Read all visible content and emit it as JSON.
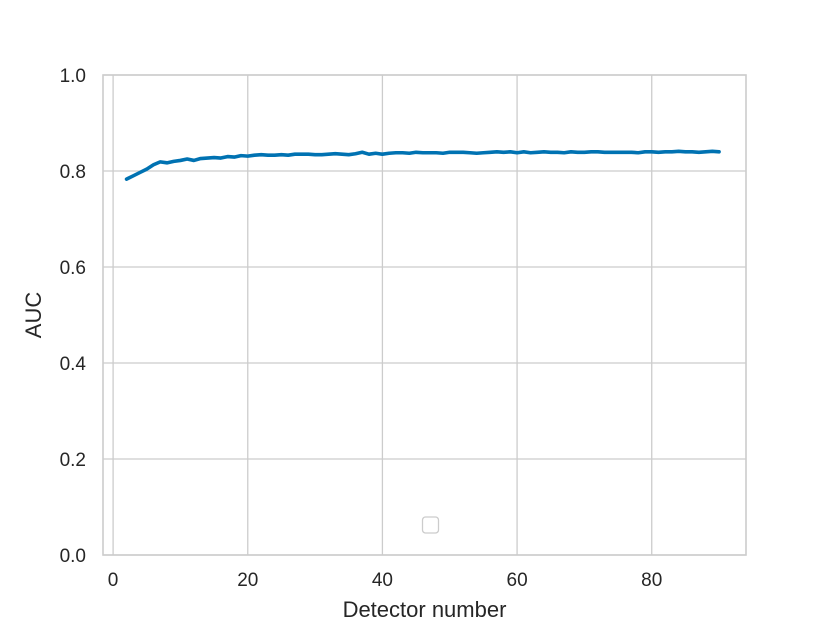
{
  "chart_data": {
    "type": "line",
    "title": "",
    "xlabel": "Detector number",
    "ylabel": "AUC",
    "xlim": [
      -1.5,
      94
    ],
    "ylim": [
      0.0,
      1.0
    ],
    "x_ticks": [
      0,
      20,
      40,
      60,
      80
    ],
    "x_tick_labels": [
      "0",
      "20",
      "40",
      "60",
      "80"
    ],
    "y_ticks": [
      0.0,
      0.2,
      0.4,
      0.6,
      0.8,
      1.0
    ],
    "y_tick_labels": [
      "0.0",
      "0.2",
      "0.4",
      "0.6",
      "0.8",
      "1.0"
    ],
    "grid": true,
    "legend": {
      "placement": "lower center",
      "entries": []
    },
    "series": [
      {
        "color": "#0072b2",
        "x": [
          2,
          3,
          4,
          5,
          6,
          7,
          8,
          9,
          10,
          11,
          12,
          13,
          14,
          15,
          16,
          17,
          18,
          19,
          20,
          21,
          22,
          23,
          24,
          25,
          26,
          27,
          28,
          29,
          30,
          31,
          32,
          33,
          34,
          35,
          36,
          37,
          38,
          39,
          40,
          41,
          42,
          43,
          44,
          45,
          46,
          47,
          48,
          49,
          50,
          51,
          52,
          53,
          54,
          55,
          56,
          57,
          58,
          59,
          60,
          61,
          62,
          63,
          64,
          65,
          66,
          67,
          68,
          69,
          70,
          71,
          72,
          73,
          74,
          75,
          76,
          77,
          78,
          79,
          80,
          81,
          82,
          83,
          84,
          85,
          86,
          87,
          88,
          89,
          90
        ],
        "y": [
          0.783,
          0.79,
          0.797,
          0.804,
          0.813,
          0.819,
          0.817,
          0.82,
          0.822,
          0.825,
          0.822,
          0.826,
          0.827,
          0.828,
          0.827,
          0.83,
          0.829,
          0.832,
          0.831,
          0.833,
          0.834,
          0.833,
          0.833,
          0.834,
          0.833,
          0.835,
          0.835,
          0.835,
          0.834,
          0.834,
          0.835,
          0.836,
          0.835,
          0.834,
          0.836,
          0.839,
          0.835,
          0.837,
          0.835,
          0.837,
          0.838,
          0.838,
          0.837,
          0.839,
          0.838,
          0.838,
          0.838,
          0.837,
          0.839,
          0.839,
          0.839,
          0.838,
          0.837,
          0.838,
          0.839,
          0.84,
          0.839,
          0.84,
          0.838,
          0.84,
          0.838,
          0.839,
          0.84,
          0.839,
          0.839,
          0.838,
          0.84,
          0.839,
          0.839,
          0.84,
          0.84,
          0.839,
          0.839,
          0.839,
          0.839,
          0.839,
          0.838,
          0.84,
          0.84,
          0.839,
          0.84,
          0.84,
          0.841,
          0.84,
          0.84,
          0.839,
          0.84,
          0.841,
          0.84
        ]
      }
    ]
  }
}
